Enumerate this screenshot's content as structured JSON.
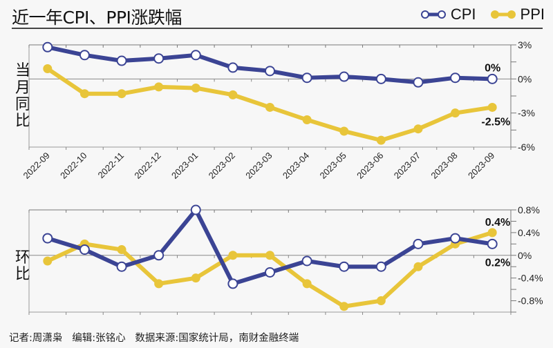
{
  "header": {
    "title": "近一年CPI、PPI涨跌幅"
  },
  "legend": [
    {
      "name": "CPI",
      "icon": "hollow-circle-line-icon",
      "color": "#3b4494"
    },
    {
      "name": "PPI",
      "icon": "filled-circle-line-icon",
      "color": "#e8c53a"
    }
  ],
  "footer": {
    "text": "记者:周潇枭   编辑:张铭心   数据来源:国家统计局，南财金融终端"
  },
  "chart_data": [
    {
      "type": "line",
      "title": "当月同比",
      "ylabel": "当月同比",
      "categories": [
        "2022-09",
        "2022-10",
        "2022-11",
        "2022-12",
        "2023-01",
        "2023-02",
        "2023-03",
        "2023-04",
        "2023-05",
        "2023-06",
        "2023-07",
        "2023-08",
        "2023-09"
      ],
      "ylim": [
        -6,
        3
      ],
      "yticks": [
        3,
        0,
        -3,
        -6
      ],
      "ytick_labels": [
        "3%",
        "0%",
        "-3%",
        "-6%"
      ],
      "grid": false,
      "legend_position": "top-right",
      "series": [
        {
          "name": "CPI",
          "color": "#3b4494",
          "values": [
            2.8,
            2.1,
            1.6,
            1.8,
            2.1,
            1.0,
            0.7,
            0.1,
            0.2,
            0.0,
            -0.3,
            0.1,
            0.0
          ]
        },
        {
          "name": "PPI",
          "color": "#e8c53a",
          "values": [
            0.9,
            -1.3,
            -1.3,
            -0.7,
            -0.8,
            -1.4,
            -2.5,
            -3.6,
            -4.6,
            -5.4,
            -4.4,
            -3.0,
            -2.5
          ]
        }
      ],
      "annotations": [
        {
          "series": "CPI",
          "label": "0%"
        },
        {
          "series": "PPI",
          "label": "-2.5%"
        }
      ]
    },
    {
      "type": "line",
      "title": "环比",
      "ylabel": "环比",
      "categories": [
        "2022-09",
        "2022-10",
        "2022-11",
        "2022-12",
        "2023-01",
        "2023-02",
        "2023-03",
        "2023-04",
        "2023-05",
        "2023-06",
        "2023-07",
        "2023-08",
        "2023-09"
      ],
      "ylim": [
        -1.0,
        0.8
      ],
      "yticks": [
        0.8,
        0.4,
        0,
        -0.4,
        -0.8
      ],
      "ytick_labels": [
        "0.8%",
        "0.4%",
        "0%",
        "-0.4%",
        "-0.8%"
      ],
      "grid": false,
      "series": [
        {
          "name": "CPI",
          "color": "#3b4494",
          "values": [
            0.3,
            0.1,
            -0.2,
            0.0,
            0.8,
            -0.5,
            -0.3,
            -0.1,
            -0.2,
            -0.2,
            0.2,
            0.3,
            0.2
          ]
        },
        {
          "name": "PPI",
          "color": "#e8c53a",
          "values": [
            -0.1,
            0.2,
            0.1,
            -0.5,
            -0.4,
            0.0,
            0.0,
            -0.5,
            -0.9,
            -0.8,
            -0.2,
            0.2,
            0.4
          ]
        }
      ],
      "annotations": [
        {
          "series": "PPI",
          "label": "0.4%"
        },
        {
          "series": "CPI",
          "label": "0.2%"
        }
      ]
    }
  ]
}
